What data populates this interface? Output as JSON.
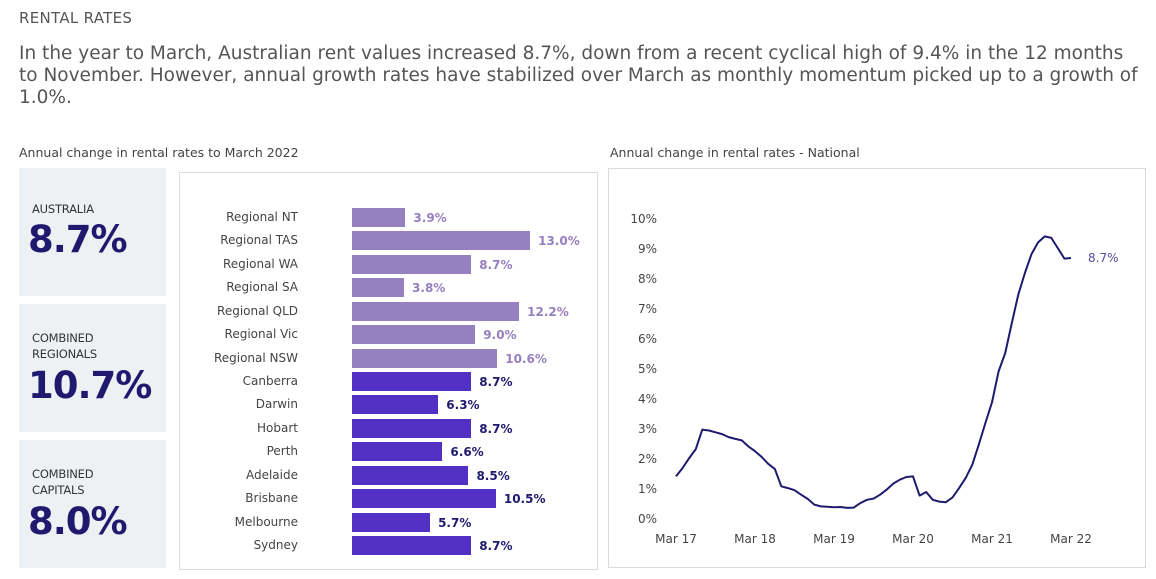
{
  "header": {
    "title": "RENTAL RATES",
    "intro": "In the year to March, Australian rent values increased 8.7%, down from a recent cyclical high of 9.4% in the 12 months to November. However, annual growth rates have stabilized over March as monthly momentum picked up to a growth of 1.0%."
  },
  "stats": [
    {
      "label": "AUSTRALIA",
      "value": "8.7%"
    },
    {
      "label": "COMBINED\nREGIONALS",
      "value": "10.7%"
    },
    {
      "label": "COMBINED\nCAPITALS",
      "value": "8.0%"
    }
  ],
  "colors": {
    "regional": "#9580c0",
    "capital": "#5230c4",
    "line": "#1f1a6e",
    "stat_value": "#1f1a6e",
    "stat_bg": "#edf1f4"
  },
  "chart_data": [
    {
      "type": "bar",
      "orientation": "horizontal",
      "title": "Annual change in rental rates to March 2022",
      "categories": [
        "Regional NT",
        "Regional TAS",
        "Regional WA",
        "Regional SA",
        "Regional QLD",
        "Regional Vic",
        "Regional NSW",
        "Canberra",
        "Darwin",
        "Hobart",
        "Perth",
        "Adelaide",
        "Brisbane",
        "Melbourne",
        "Sydney"
      ],
      "values": [
        3.9,
        13.0,
        8.7,
        3.8,
        12.2,
        9.0,
        10.6,
        8.7,
        6.3,
        8.7,
        6.6,
        8.5,
        10.5,
        5.7,
        8.7
      ],
      "labels": [
        "3.9%",
        "13.0%",
        "8.7%",
        "3.8%",
        "12.2%",
        "9.0%",
        "10.6%",
        "8.7%",
        "6.3%",
        "8.7%",
        "6.6%",
        "8.5%",
        "10.5%",
        "5.7%",
        "8.7%"
      ],
      "groups": [
        "regional",
        "regional",
        "regional",
        "regional",
        "regional",
        "regional",
        "regional",
        "capital",
        "capital",
        "capital",
        "capital",
        "capital",
        "capital",
        "capital",
        "capital"
      ],
      "unit": "%"
    },
    {
      "type": "line",
      "title": "Annual change in rental rates - National",
      "x_start": "Mar 17",
      "x_end": "Mar 22",
      "frequency": "monthly",
      "x_ticks": [
        "Mar 17",
        "Mar 18",
        "Mar 19",
        "Mar 20",
        "Mar 21",
        "Mar 22"
      ],
      "y_ticks": [
        "0%",
        "1%",
        "2%",
        "3%",
        "4%",
        "5%",
        "6%",
        "7%",
        "8%",
        "9%",
        "10%"
      ],
      "ylim": [
        0,
        10
      ],
      "values": [
        1.42,
        1.7,
        2.03,
        2.33,
        2.98,
        2.95,
        2.89,
        2.83,
        2.73,
        2.67,
        2.62,
        2.42,
        2.26,
        2.07,
        1.84,
        1.67,
        1.09,
        1.03,
        0.96,
        0.81,
        0.67,
        0.48,
        0.42,
        0.41,
        0.39,
        0.4,
        0.37,
        0.38,
        0.53,
        0.64,
        0.68,
        0.81,
        0.98,
        1.18,
        1.31,
        1.4,
        1.42,
        0.78,
        0.9,
        0.64,
        0.58,
        0.56,
        0.72,
        1.03,
        1.37,
        1.81,
        2.48,
        3.2,
        3.89,
        4.92,
        5.53,
        6.53,
        7.48,
        8.2,
        8.83,
        9.22,
        9.42,
        9.37,
        9.03,
        8.68,
        8.7
      ],
      "end_label": "8.7%",
      "grid": false
    }
  ]
}
